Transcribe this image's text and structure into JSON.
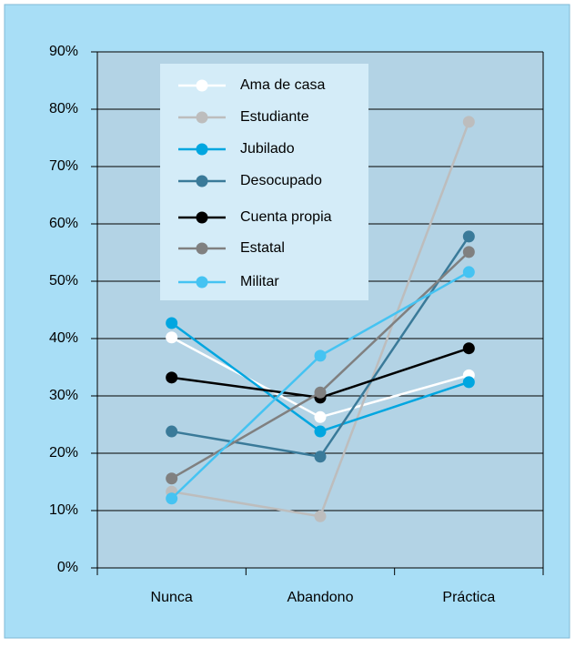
{
  "chart_data": {
    "type": "line",
    "categories": [
      "Nunca",
      "Abandono",
      "Práctica"
    ],
    "series": [
      {
        "name": "Ama de casa",
        "color": "#ffffff",
        "values": [
          40.2,
          26.3,
          33.6
        ]
      },
      {
        "name": "Estudiante",
        "color": "#bdbdbd",
        "values": [
          13.3,
          9.0,
          77.8
        ]
      },
      {
        "name": "Jubilado",
        "color": "#00a6e0",
        "values": [
          42.7,
          23.8,
          32.4
        ]
      },
      {
        "name": "Desocupado",
        "color": "#3a7a99",
        "values": [
          23.8,
          19.4,
          57.8
        ]
      },
      {
        "name": "Cuenta propia",
        "color": "#000000",
        "values": [
          33.2,
          29.7,
          38.3
        ]
      },
      {
        "name": "Estatal",
        "color": "#808080",
        "values": [
          15.6,
          30.6,
          55.1
        ]
      },
      {
        "name": "Militar",
        "color": "#45c3f2",
        "values": [
          12.1,
          37.0,
          51.6
        ]
      }
    ],
    "ylim": [
      0,
      90
    ],
    "yticks": [
      {
        "value": 0,
        "label": "0%"
      },
      {
        "value": 10,
        "label": "10%"
      },
      {
        "value": 20,
        "label": "20%"
      },
      {
        "value": 30,
        "label": "30%"
      },
      {
        "value": 40,
        "label": "40%"
      },
      {
        "value": 50,
        "label": "50%"
      },
      {
        "value": 60,
        "label": "60%"
      },
      {
        "value": 70,
        "label": "70%"
      },
      {
        "value": 80,
        "label": "80%"
      },
      {
        "value": 90,
        "label": "90%"
      }
    ],
    "grid": true,
    "legend": "upper left"
  }
}
